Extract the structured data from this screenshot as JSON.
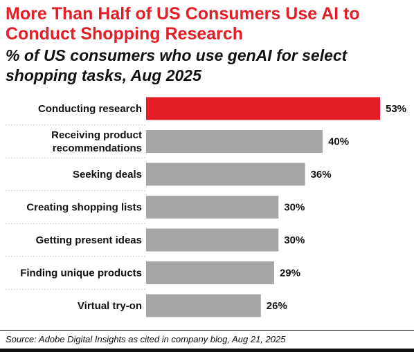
{
  "chart_data": {
    "type": "bar",
    "orientation": "horizontal",
    "title": "More Than Half of US Consumers Use AI to Conduct Shopping Research",
    "subtitle": "% of US consumers who use genAI for select shopping tasks, Aug 2025",
    "categories": [
      [
        "Conducting research"
      ],
      [
        "Receiving product",
        "recommendations"
      ],
      [
        "Seeking deals"
      ],
      [
        "Creating shopping lists"
      ],
      [
        "Getting present ideas"
      ],
      [
        "Finding unique products"
      ],
      [
        "Virtual try-on"
      ]
    ],
    "values": [
      53,
      40,
      36,
      30,
      30,
      29,
      26
    ],
    "value_labels": [
      "53%",
      "40%",
      "36%",
      "30%",
      "30%",
      "29%",
      "26%"
    ],
    "xlim": [
      0,
      53
    ],
    "highlight_index": 0,
    "grid": false,
    "colors": {
      "highlight": "#e41e26",
      "bar": "#a6a6a6",
      "divider": "#cccccc"
    }
  },
  "source": "Source: Adobe Digital Insights as cited in company blog, Aug 21, 2025"
}
